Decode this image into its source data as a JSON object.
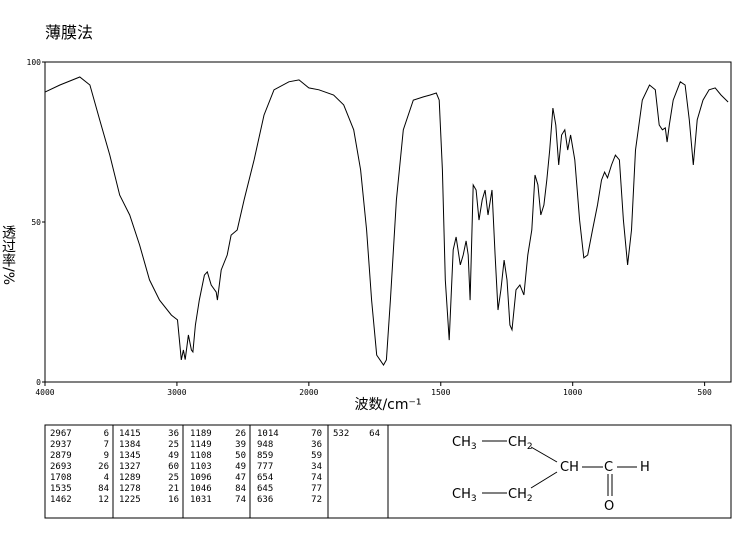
{
  "chart_data": {
    "type": "line",
    "title": "薄膜法",
    "x_label": "波数/cm⁻¹",
    "y_label": "透过率/%",
    "xlim": [
      4000,
      400
    ],
    "x_scale_break": 2000,
    "ylim": [
      0,
      100
    ],
    "xticks": [
      4000,
      3000,
      2000,
      1500,
      1000,
      500
    ],
    "yticks": [
      0,
      50,
      100
    ],
    "color": "#000000",
    "x": [
      4000,
      3887,
      3736,
      3660,
      3585,
      3509,
      3434,
      3358,
      3283,
      3208,
      3132,
      3042,
      2996,
      2967,
      2951,
      2937,
      2913,
      2890,
      2879,
      2860,
      2830,
      2792,
      2770,
      2740,
      2702,
      2693,
      2664,
      2619,
      2589,
      2543,
      2491,
      2415,
      2340,
      2264,
      2151,
      2075,
      2000,
      1962,
      1906,
      1868,
      1830,
      1804,
      1781,
      1762,
      1743,
      1717,
      1706,
      1691,
      1668,
      1642,
      1604,
      1566,
      1540,
      1517,
      1506,
      1494,
      1483,
      1468,
      1453,
      1442,
      1426,
      1415,
      1404,
      1396,
      1389,
      1377,
      1366,
      1355,
      1343,
      1332,
      1321,
      1306,
      1294,
      1283,
      1272,
      1260,
      1249,
      1238,
      1230,
      1215,
      1200,
      1185,
      1170,
      1155,
      1143,
      1132,
      1121,
      1109,
      1098,
      1087,
      1075,
      1064,
      1053,
      1042,
      1030,
      1019,
      1008,
      992,
      974,
      958,
      943,
      925,
      906,
      891,
      879,
      868,
      853,
      838,
      823,
      808,
      792,
      777,
      762,
      736,
      709,
      687,
      672,
      660,
      649,
      642,
      634,
      619,
      592,
      574,
      558,
      543,
      528,
      506,
      483,
      460,
      438,
      411
    ],
    "values": [
      90.6,
      92.8,
      95.3,
      92.8,
      81.9,
      70.9,
      58.4,
      52.2,
      42.8,
      31.9,
      25.6,
      20.9,
      19.4,
      6.9,
      10,
      7,
      14.7,
      10,
      9.4,
      17.8,
      25.6,
      33.4,
      34.4,
      30.3,
      28.1,
      25.6,
      35,
      39.7,
      45.9,
      47.5,
      56.9,
      69.4,
      83.4,
      91.3,
      93.8,
      94.4,
      91.9,
      91.3,
      89.7,
      86.6,
      78.8,
      66.3,
      47.5,
      25.6,
      8.4,
      5.3,
      6.9,
      25.6,
      56.9,
      78.8,
      88.1,
      89.1,
      89.7,
      90.3,
      88.1,
      66.3,
      31.9,
      13.1,
      41.3,
      45.3,
      36.6,
      39.7,
      44.1,
      39.7,
      25.6,
      61.6,
      60,
      50.6,
      56.9,
      60,
      52.2,
      60,
      39.7,
      22.5,
      28.8,
      38.1,
      31.9,
      17.8,
      16.3,
      28.8,
      30.3,
      27.2,
      39.7,
      47.5,
      64.7,
      61.6,
      52.2,
      55.3,
      63.1,
      72.5,
      85.6,
      80.3,
      67.8,
      77.2,
      78.8,
      72.5,
      77.2,
      69.4,
      50.6,
      38.8,
      39.7,
      47.5,
      55.3,
      63.1,
      65.6,
      63.8,
      67.8,
      70.9,
      69.4,
      50.6,
      36.6,
      47.5,
      72.5,
      88.1,
      92.8,
      91.3,
      80.3,
      78.8,
      79.4,
      75,
      80.3,
      88.1,
      93.8,
      92.8,
      81.9,
      67.8,
      81.9,
      88.1,
      91.3,
      91.9,
      89.7,
      87.5
    ]
  },
  "peak_table": {
    "columns": [
      [
        [
          2967,
          6
        ],
        [
          2937,
          7
        ],
        [
          2879,
          9
        ],
        [
          2693,
          26
        ],
        [
          1708,
          4
        ],
        [
          1535,
          84
        ],
        [
          1462,
          12
        ]
      ],
      [
        [
          1415,
          36
        ],
        [
          1384,
          25
        ],
        [
          1345,
          49
        ],
        [
          1327,
          60
        ],
        [
          1289,
          25
        ],
        [
          1278,
          21
        ],
        [
          1225,
          16
        ]
      ],
      [
        [
          1189,
          26
        ],
        [
          1149,
          39
        ],
        [
          1108,
          50
        ],
        [
          1103,
          49
        ],
        [
          1096,
          47
        ],
        [
          1046,
          84
        ],
        [
          1031,
          74
        ]
      ],
      [
        [
          1014,
          70
        ],
        [
          948,
          36
        ],
        [
          859,
          59
        ],
        [
          777,
          34
        ],
        [
          654,
          74
        ],
        [
          645,
          77
        ],
        [
          636,
          72
        ]
      ],
      [
        [
          532,
          64
        ]
      ]
    ]
  },
  "structure": {
    "atoms": [
      {
        "text": "CH",
        "sub": "3"
      },
      {
        "text": "CH",
        "sub": "2"
      },
      {
        "text": "CH"
      },
      {
        "text": "C"
      },
      {
        "text": "H"
      },
      {
        "text": "CH",
        "sub": "3"
      },
      {
        "text": "CH",
        "sub": "2"
      },
      {
        "text": "O"
      }
    ]
  }
}
